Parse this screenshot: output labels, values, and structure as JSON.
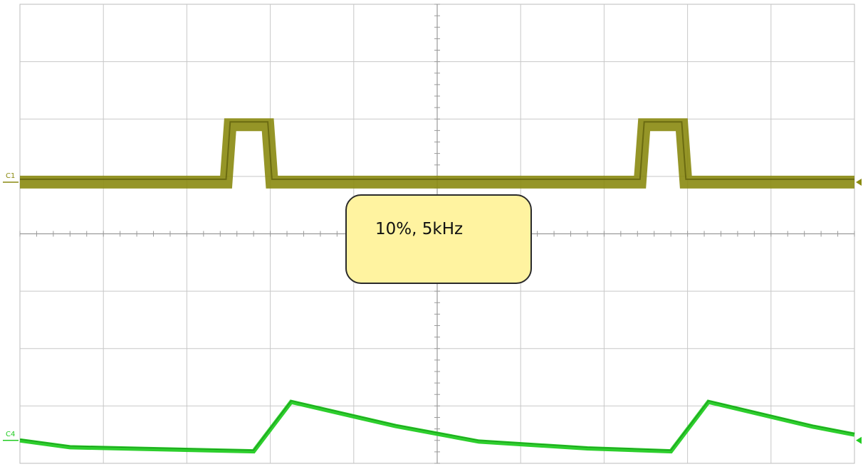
{
  "chart_data": {
    "type": "line",
    "annotation": "10%, 5kHz",
    "grid": true,
    "grid_divisions": {
      "x": 10,
      "y": 8
    },
    "channels": [
      {
        "label": "C1",
        "color": "#8a8a10",
        "waveform": "pulse",
        "x_div": [
          0,
          2.47,
          2.52,
          2.97,
          3.02,
          7.43,
          7.48,
          7.93,
          7.98,
          10
        ],
        "y_div": [
          0.9,
          0.9,
          1.9,
          1.9,
          0.9,
          0.9,
          1.9,
          1.9,
          0.9,
          0.9
        ]
      },
      {
        "label": "C4",
        "color": "#22cc22",
        "waveform": "sawtooth",
        "x_div": [
          0,
          0.6,
          1.5,
          2.8,
          3.25,
          4.5,
          5.5,
          6.8,
          7.8,
          8.25,
          9.5,
          10
        ],
        "y_div": [
          -3.6,
          -3.72,
          -3.75,
          -3.79,
          -2.93,
          -3.35,
          -3.62,
          -3.74,
          -3.79,
          -2.93,
          -3.36,
          -3.5
        ]
      }
    ]
  }
}
